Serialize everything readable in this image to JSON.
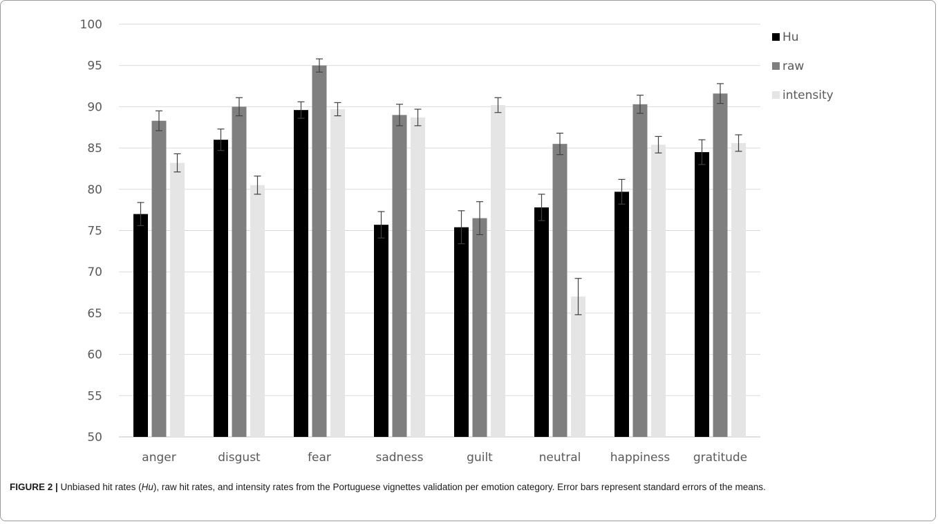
{
  "caption": {
    "label": "FIGURE 2 |",
    "part1": " Unbiased hit rates (",
    "part1_italic": "Hu",
    "part2": "), raw hit rates, and intensity rates from the Portuguese vignettes validation per emotion category. Error bars represent standard errors of the means."
  },
  "chart_data": {
    "type": "bar",
    "title": "",
    "xlabel": "",
    "ylabel": "",
    "ylim": [
      50,
      100
    ],
    "yticks": [
      50,
      55,
      60,
      65,
      70,
      75,
      80,
      85,
      90,
      95,
      100
    ],
    "grid": true,
    "legend_position": "top-right",
    "categories": [
      "anger",
      "disgust",
      "fear",
      "sadness",
      "guilt",
      "neutral",
      "happiness",
      "gratitude"
    ],
    "series": [
      {
        "name": "Hu",
        "color": "#000000",
        "values": [
          77.0,
          86.0,
          89.6,
          75.7,
          75.4,
          77.8,
          79.7,
          84.5
        ],
        "errors": [
          1.4,
          1.3,
          1.0,
          1.6,
          2.0,
          1.6,
          1.5,
          1.5
        ]
      },
      {
        "name": "raw",
        "color": "#7f7f7f",
        "values": [
          88.3,
          90.0,
          95.0,
          89.0,
          76.5,
          85.5,
          90.3,
          91.6
        ],
        "errors": [
          1.2,
          1.1,
          0.8,
          1.3,
          2.0,
          1.3,
          1.1,
          1.2
        ]
      },
      {
        "name": "intensity",
        "color": "#e5e5e5",
        "values": [
          83.2,
          80.5,
          89.7,
          88.7,
          90.2,
          67.0,
          85.4,
          85.6
        ],
        "errors": [
          1.1,
          1.1,
          0.8,
          1.0,
          0.9,
          2.2,
          1.0,
          1.0
        ]
      }
    ]
  }
}
